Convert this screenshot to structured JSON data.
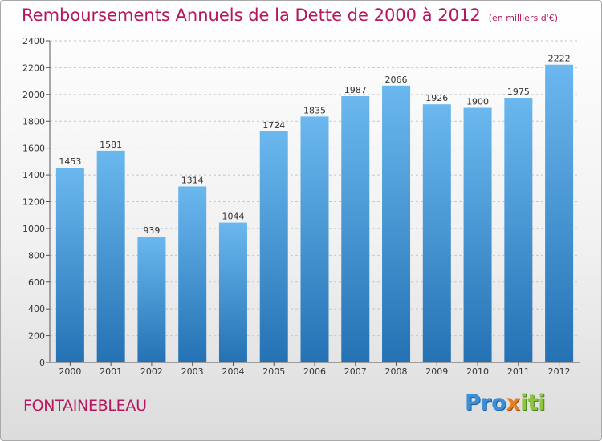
{
  "header": {
    "title": "Remboursements Annuels de la Dette de 2000 à 2012",
    "subtitle": "(en milliers d'€)"
  },
  "footer": {
    "city": "FONTAINEBLEAU",
    "logo": {
      "part1": "Pro",
      "part2": "x",
      "part3": "iti"
    }
  },
  "colors": {
    "title": "#b5175e",
    "bar_light": "#6bb8ef",
    "bar_dark": "#2472b4"
  },
  "chart_data": {
    "type": "bar",
    "categories": [
      "2000",
      "2001",
      "2002",
      "2003",
      "2004",
      "2005",
      "2006",
      "2007",
      "2008",
      "2009",
      "2010",
      "2011",
      "2012"
    ],
    "values": [
      1453,
      1581,
      939,
      1314,
      1044,
      1724,
      1835,
      1987,
      2066,
      1926,
      1900,
      1975,
      2222
    ],
    "title": "Remboursements Annuels de la Dette de 2000 à 2012",
    "subtitle": "(en milliers d'€)",
    "xlabel": "",
    "ylabel": "",
    "ylim": [
      0,
      2400
    ],
    "yticks": [
      0,
      200,
      400,
      600,
      800,
      1000,
      1200,
      1400,
      1600,
      1800,
      2000,
      2200,
      2400
    ],
    "grid": true,
    "data_labels": true
  }
}
